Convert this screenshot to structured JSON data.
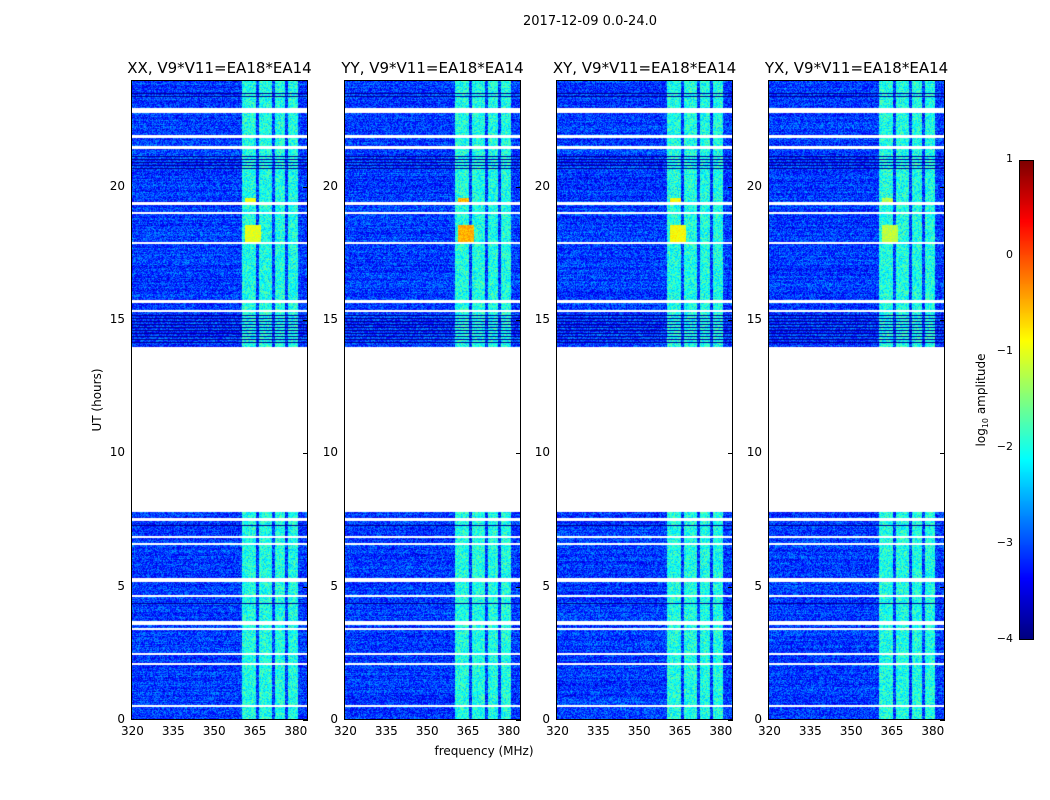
{
  "chart_data": {
    "type": "heatmap",
    "title": "2017-12-09 0.0-24.0",
    "xlabel": "frequency (MHz)",
    "ylabel": "UT (hours)",
    "xlim": [
      320,
      385
    ],
    "ylim": [
      0,
      24
    ],
    "xticks": [
      320,
      335,
      350,
      365,
      380
    ],
    "yticks": [
      0,
      5,
      10,
      15,
      20
    ],
    "panels": [
      {
        "title": "XX, V9*V11=EA18*EA14",
        "event_peak": -1.0
      },
      {
        "title": "YY, V9*V11=EA18*EA14",
        "event_peak": -0.5
      },
      {
        "title": "XY, V9*V11=EA18*EA14",
        "event_peak": -0.9
      },
      {
        "title": "YX, V9*V11=EA18*EA14",
        "event_peak": -1.2
      }
    ],
    "colorbar": {
      "label_main": "log",
      "label_sub": "10",
      "label_rest": " amplitude",
      "range": [
        -4,
        1
      ],
      "ticks": [
        "1",
        "0",
        "−1",
        "−2",
        "−3",
        "−4"
      ],
      "tick_values": [
        1,
        0,
        -1,
        -2,
        -3,
        -4
      ],
      "colormap": "jet"
    },
    "background_level": -3.1,
    "rfi_channels_mhz": [
      [
        361,
        366
      ],
      [
        367,
        372
      ],
      [
        373,
        377
      ],
      [
        378,
        381.5
      ]
    ],
    "rfi_level": -2.0,
    "data_gap_hours": [
      7.8,
      14.0
    ],
    "flagged_hours": [
      [
        22.8,
        23.0
      ],
      [
        21.85,
        21.95
      ],
      [
        21.45,
        21.55
      ],
      [
        19.35,
        19.45
      ],
      [
        19.0,
        19.08
      ],
      [
        17.85,
        17.95
      ],
      [
        15.65,
        15.75
      ],
      [
        15.3,
        15.38
      ],
      [
        7.45,
        7.55
      ],
      [
        6.8,
        6.88
      ],
      [
        6.55,
        6.62
      ],
      [
        5.15,
        5.3
      ],
      [
        4.6,
        4.68
      ],
      [
        3.55,
        3.7
      ],
      [
        3.35,
        3.42
      ],
      [
        2.4,
        2.48
      ],
      [
        2.05,
        2.12
      ],
      [
        0.45,
        0.52
      ]
    ],
    "dark_hours": [
      [
        23.35,
        23.6
      ],
      [
        20.6,
        21.2
      ],
      [
        14.1,
        15.2
      ],
      [
        7.2,
        7.35
      ],
      [
        4.3,
        4.45
      ]
    ],
    "events": [
      {
        "hours": [
          17.9,
          18.6
        ],
        "mhz": [
          362,
          368
        ]
      },
      {
        "hours": [
          19.4,
          19.6
        ],
        "mhz": [
          362,
          366
        ]
      }
    ]
  }
}
